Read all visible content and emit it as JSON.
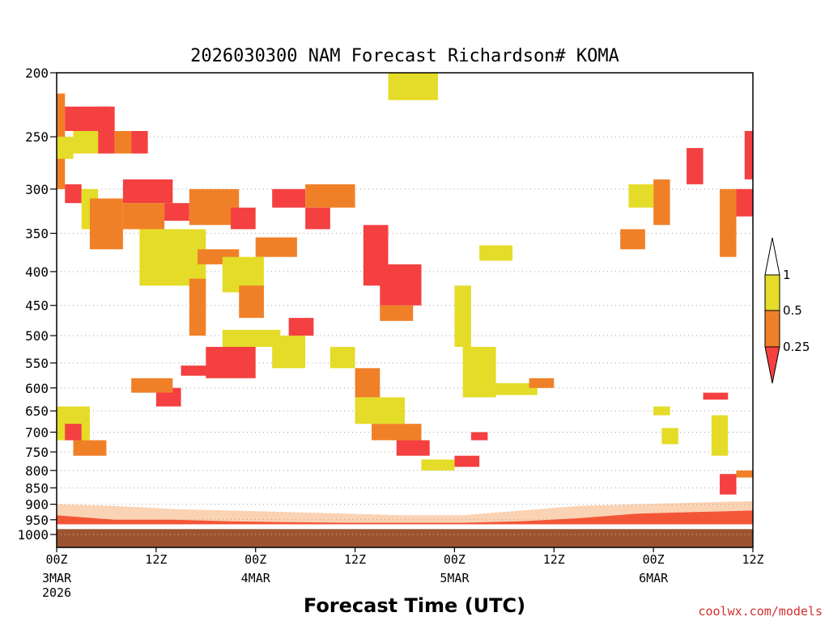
{
  "chart_data": {
    "type": "heatmap",
    "title": "2026030300 NAM Forecast Richardson# KOMA",
    "xlabel": "Forecast Time (UTC)",
    "ylabel": "",
    "x_unit": "forecast hour",
    "xlim": [
      0,
      84
    ],
    "y_unit": "hPa",
    "ylim": [
      1000,
      200
    ],
    "y_scale": "log",
    "y_ticks": [
      200,
      250,
      300,
      350,
      400,
      450,
      500,
      550,
      600,
      650,
      700,
      750,
      800,
      850,
      900,
      950,
      1000
    ],
    "x_ticks": [
      {
        "hour": 0,
        "label": "00Z",
        "date": "3MAR",
        "year": "2026"
      },
      {
        "hour": 12,
        "label": "12Z"
      },
      {
        "hour": 24,
        "label": "00Z",
        "date": "4MAR"
      },
      {
        "hour": 36,
        "label": "12Z"
      },
      {
        "hour": 48,
        "label": "00Z",
        "date": "5MAR"
      },
      {
        "hour": 60,
        "label": "12Z"
      },
      {
        "hour": 72,
        "label": "00Z",
        "date": "6MAR"
      },
      {
        "hour": 84,
        "label": "12Z"
      }
    ],
    "gridlines": "dotted horizontal at each pressure tick",
    "legend": {
      "position": "right",
      "bins": [
        {
          "range": "< 0.25",
          "color": "#f44040"
        },
        {
          "range": "0.25 - 0.5",
          "color": "#f08028"
        },
        {
          "range": "0.5 - 1",
          "color": "#e4dc28"
        },
        {
          "range": "> 1",
          "color": "#ffffff"
        }
      ],
      "labels": [
        "1",
        "0.5",
        "0.25"
      ]
    },
    "colors": {
      "low": "#f44040",
      "mid": "#f08028",
      "high": "#e4dc28",
      "ground": "#9c5430"
    },
    "ground_pressure_hpa": 965,
    "cells": [
      {
        "t0": 0,
        "t1": 1,
        "p0": 215,
        "p1": 300,
        "bin": "mid"
      },
      {
        "t0": 0,
        "t1": 2,
        "p0": 250,
        "p1": 270,
        "bin": "high"
      },
      {
        "t0": 1,
        "t1": 6,
        "p0": 225,
        "p1": 245,
        "bin": "low"
      },
      {
        "t0": 2,
        "t1": 5,
        "p0": 245,
        "p1": 265,
        "bin": "high"
      },
      {
        "t0": 5,
        "t1": 7,
        "p0": 225,
        "p1": 265,
        "bin": "low"
      },
      {
        "t0": 7,
        "t1": 9,
        "p0": 245,
        "p1": 265,
        "bin": "mid"
      },
      {
        "t0": 9,
        "t1": 11,
        "p0": 245,
        "p1": 265,
        "bin": "low"
      },
      {
        "t0": 1,
        "t1": 3,
        "p0": 295,
        "p1": 315,
        "bin": "low"
      },
      {
        "t0": 3,
        "t1": 5,
        "p0": 300,
        "p1": 345,
        "bin": "high"
      },
      {
        "t0": 4,
        "t1": 8,
        "p0": 310,
        "p1": 370,
        "bin": "mid"
      },
      {
        "t0": 8,
        "t1": 14,
        "p0": 290,
        "p1": 315,
        "bin": "low"
      },
      {
        "t0": 8,
        "t1": 13,
        "p0": 315,
        "p1": 345,
        "bin": "mid"
      },
      {
        "t0": 13,
        "t1": 16,
        "p0": 315,
        "p1": 335,
        "bin": "low"
      },
      {
        "t0": 16,
        "t1": 22,
        "p0": 300,
        "p1": 340,
        "bin": "mid"
      },
      {
        "t0": 21,
        "t1": 24,
        "p0": 320,
        "p1": 345,
        "bin": "low"
      },
      {
        "t0": 10,
        "t1": 18,
        "p0": 345,
        "p1": 420,
        "bin": "high"
      },
      {
        "t0": 17,
        "t1": 22,
        "p0": 370,
        "p1": 390,
        "bin": "mid"
      },
      {
        "t0": 24,
        "t1": 29,
        "p0": 355,
        "p1": 380,
        "bin": "mid"
      },
      {
        "t0": 20,
        "t1": 25,
        "p0": 380,
        "p1": 430,
        "bin": "high"
      },
      {
        "t0": 22,
        "t1": 25,
        "p0": 420,
        "p1": 470,
        "bin": "mid"
      },
      {
        "t0": 16,
        "t1": 18,
        "p0": 410,
        "p1": 500,
        "bin": "mid"
      },
      {
        "t0": 26,
        "t1": 30,
        "p0": 300,
        "p1": 320,
        "bin": "low"
      },
      {
        "t0": 30,
        "t1": 36,
        "p0": 295,
        "p1": 320,
        "bin": "mid"
      },
      {
        "t0": 30,
        "t1": 33,
        "p0": 320,
        "p1": 345,
        "bin": "low"
      },
      {
        "t0": 37,
        "t1": 40,
        "p0": 340,
        "p1": 420,
        "bin": "low"
      },
      {
        "t0": 39,
        "t1": 44,
        "p0": 390,
        "p1": 450,
        "bin": "low"
      },
      {
        "t0": 39,
        "t1": 43,
        "p0": 450,
        "p1": 475,
        "bin": "mid"
      },
      {
        "t0": 18,
        "t1": 24,
        "p0": 520,
        "p1": 580,
        "bin": "low"
      },
      {
        "t0": 15,
        "t1": 19,
        "p0": 555,
        "p1": 575,
        "bin": "low"
      },
      {
        "t0": 12,
        "t1": 15,
        "p0": 600,
        "p1": 640,
        "bin": "low"
      },
      {
        "t0": 9,
        "t1": 14,
        "p0": 580,
        "p1": 610,
        "bin": "mid"
      },
      {
        "t0": 20,
        "t1": 27,
        "p0": 490,
        "p1": 520,
        "bin": "high"
      },
      {
        "t0": 26,
        "t1": 30,
        "p0": 500,
        "p1": 560,
        "bin": "high"
      },
      {
        "t0": 28,
        "t1": 31,
        "p0": 470,
        "p1": 500,
        "bin": "low"
      },
      {
        "t0": 33,
        "t1": 36,
        "p0": 520,
        "p1": 560,
        "bin": "high"
      },
      {
        "t0": 36,
        "t1": 39,
        "p0": 560,
        "p1": 620,
        "bin": "mid"
      },
      {
        "t0": 36,
        "t1": 42,
        "p0": 620,
        "p1": 680,
        "bin": "high"
      },
      {
        "t0": 38,
        "t1": 44,
        "p0": 680,
        "p1": 720,
        "bin": "mid"
      },
      {
        "t0": 41,
        "t1": 45,
        "p0": 720,
        "p1": 760,
        "bin": "low"
      },
      {
        "t0": 0,
        "t1": 4,
        "p0": 640,
        "p1": 720,
        "bin": "high"
      },
      {
        "t0": 1,
        "t1": 3,
        "p0": 680,
        "p1": 720,
        "bin": "low"
      },
      {
        "t0": 2,
        "t1": 6,
        "p0": 720,
        "p1": 760,
        "bin": "mid"
      },
      {
        "t0": 40,
        "t1": 46,
        "p0": 200,
        "p1": 220,
        "bin": "high"
      },
      {
        "t0": 48,
        "t1": 50,
        "p0": 420,
        "p1": 520,
        "bin": "high"
      },
      {
        "t0": 49,
        "t1": 53,
        "p0": 520,
        "p1": 620,
        "bin": "high"
      },
      {
        "t0": 52,
        "t1": 58,
        "p0": 590,
        "p1": 615,
        "bin": "high"
      },
      {
        "t0": 57,
        "t1": 60,
        "p0": 580,
        "p1": 600,
        "bin": "mid"
      },
      {
        "t0": 51,
        "t1": 55,
        "p0": 365,
        "p1": 385,
        "bin": "high"
      },
      {
        "t0": 48,
        "t1": 51,
        "p0": 760,
        "p1": 790,
        "bin": "low"
      },
      {
        "t0": 44,
        "t1": 48,
        "p0": 770,
        "p1": 800,
        "bin": "high"
      },
      {
        "t0": 50,
        "t1": 52,
        "p0": 700,
        "p1": 720,
        "bin": "low"
      },
      {
        "t0": 69,
        "t1": 72,
        "p0": 295,
        "p1": 320,
        "bin": "high"
      },
      {
        "t0": 72,
        "t1": 74,
        "p0": 290,
        "p1": 340,
        "bin": "mid"
      },
      {
        "t0": 68,
        "t1": 71,
        "p0": 345,
        "p1": 370,
        "bin": "mid"
      },
      {
        "t0": 76,
        "t1": 78,
        "p0": 260,
        "p1": 295,
        "bin": "low"
      },
      {
        "t0": 80,
        "t1": 82,
        "p0": 300,
        "p1": 380,
        "bin": "mid"
      },
      {
        "t0": 82,
        "t1": 84,
        "p0": 300,
        "p1": 330,
        "bin": "low"
      },
      {
        "t0": 83,
        "t1": 84,
        "p0": 245,
        "p1": 290,
        "bin": "low"
      },
      {
        "t0": 78,
        "t1": 81,
        "p0": 610,
        "p1": 625,
        "bin": "low"
      },
      {
        "t0": 79,
        "t1": 81,
        "p0": 660,
        "p1": 760,
        "bin": "high"
      },
      {
        "t0": 80,
        "t1": 82,
        "p0": 810,
        "p1": 870,
        "bin": "low"
      },
      {
        "t0": 82,
        "t1": 84,
        "p0": 800,
        "p1": 820,
        "bin": "mid"
      },
      {
        "t0": 73,
        "t1": 75,
        "p0": 690,
        "p1": 730,
        "bin": "high"
      },
      {
        "t0": 72,
        "t1": 74,
        "p0": 640,
        "p1": 660,
        "bin": "high"
      }
    ],
    "surface_layers": [
      {
        "t0": 0,
        "t1": 84,
        "top_p": [
          935,
          950,
          950,
          955,
          958,
          960,
          960,
          960,
          955,
          945,
          930,
          925,
          920
        ],
        "bin": "low"
      },
      {
        "t0": 0,
        "t1": 84,
        "top_p": [
          900,
          905,
          915,
          920,
          925,
          930,
          935,
          935,
          920,
          905,
          900,
          895,
          890
        ],
        "bin": "mid"
      }
    ]
  },
  "credit": "coolwx.com/models"
}
